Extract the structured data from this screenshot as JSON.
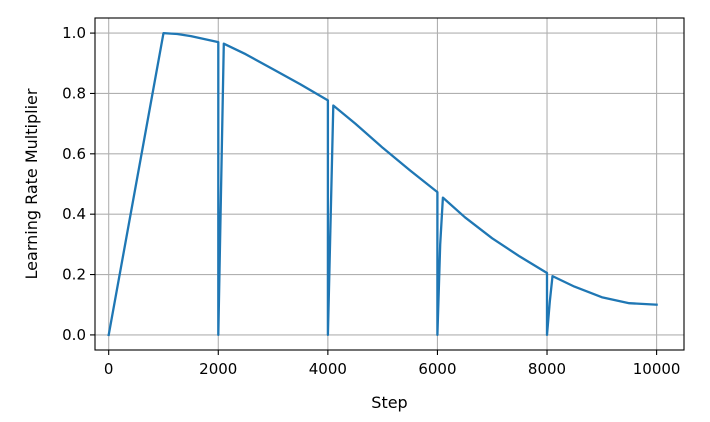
{
  "chart_data": {
    "type": "line",
    "title": "",
    "xlabel": "Step",
    "ylabel": "Learning Rate Multiplier",
    "xlim": [
      -250,
      10500
    ],
    "ylim": [
      -0.05,
      1.05
    ],
    "xticks": [
      0,
      2000,
      4000,
      6000,
      8000,
      10000
    ],
    "xtick_labels": [
      "0",
      "2000",
      "4000",
      "6000",
      "8000",
      "10000"
    ],
    "yticks": [
      0.0,
      0.2,
      0.4,
      0.6,
      0.8,
      1.0
    ],
    "ytick_labels": [
      "0.0",
      "0.2",
      "0.4",
      "0.6",
      "0.8",
      "1.0"
    ],
    "grid": true,
    "legend": "none",
    "color": "#1f77b4",
    "series": [
      {
        "x": [
          0,
          1000,
          1250,
          1500,
          1750,
          2000,
          2000,
          2100,
          2500,
          3000,
          3500,
          4000,
          4000,
          4100,
          4500,
          5000,
          5500,
          6000,
          6000,
          6050,
          6100,
          6500,
          7000,
          7500,
          8000,
          8000,
          8050,
          8100,
          8500,
          9000,
          9500,
          10000
        ],
        "y": [
          0.0,
          1.0,
          0.997,
          0.99,
          0.98,
          0.97,
          0.0,
          0.965,
          0.93,
          0.88,
          0.83,
          0.777,
          0.0,
          0.76,
          0.7,
          0.62,
          0.545,
          0.473,
          0.0,
          0.3,
          0.455,
          0.39,
          0.32,
          0.26,
          0.205,
          0.0,
          0.11,
          0.195,
          0.16,
          0.125,
          0.105,
          0.1
        ]
      }
    ]
  }
}
